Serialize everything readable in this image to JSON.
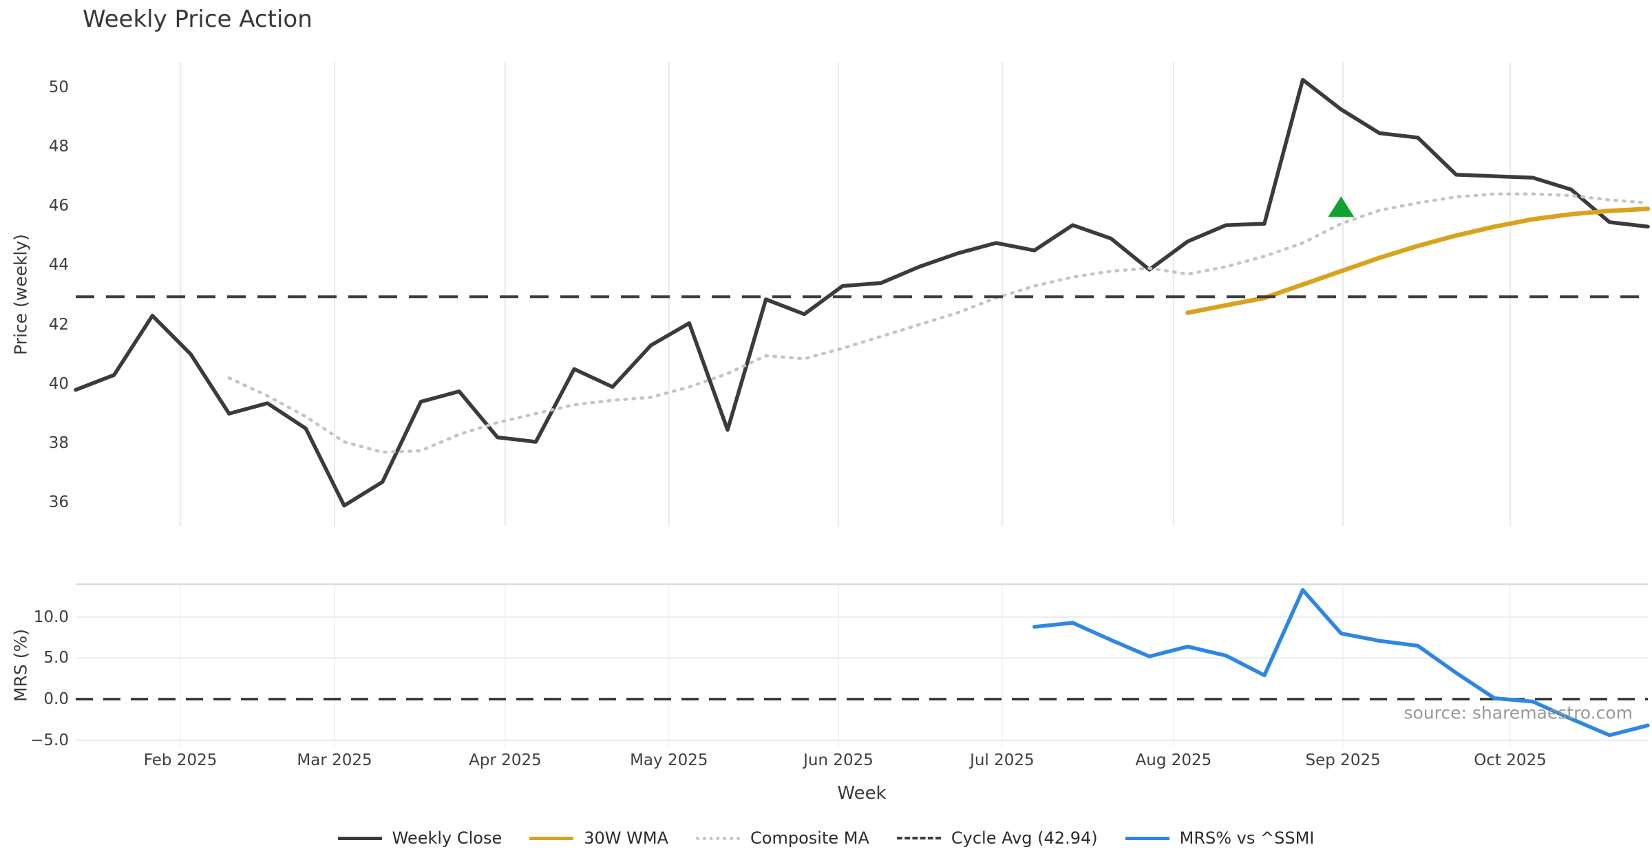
{
  "title": "Weekly Price Action",
  "source_note": "source: sharemaestro.com",
  "axes": {
    "x_label": "Week",
    "month_ticks": [
      {
        "label": "Feb 2025",
        "week": 2.73
      },
      {
        "label": "Mar 2025",
        "week": 6.75
      },
      {
        "label": "Apr 2025",
        "week": 11.2
      },
      {
        "label": "May 2025",
        "week": 15.47
      },
      {
        "label": "Jun 2025",
        "week": 19.89
      },
      {
        "label": "Jul 2025",
        "week": 24.16
      },
      {
        "label": "Aug 2025",
        "week": 28.63
      },
      {
        "label": "Sep 2025",
        "week": 33.05
      },
      {
        "label": "Oct 2025",
        "week": 37.41
      }
    ],
    "price": {
      "label": "Price (weekly)",
      "ticks": [
        36,
        38,
        40,
        42,
        44,
        46,
        48,
        50
      ],
      "ylim": [
        35.2,
        50.85
      ]
    },
    "mrs": {
      "label": "MRS (%)",
      "ticks": [
        {
          "label": "10.0",
          "value": 10
        },
        {
          "label": "5.0",
          "value": 5
        },
        {
          "label": "0.0",
          "value": 0
        },
        {
          "label": "−5.0",
          "value": -5
        }
      ],
      "grid_values": [
        10,
        5,
        -5
      ],
      "ylim": [
        -5.78,
        14.0
      ]
    }
  },
  "colors": {
    "close": "#3b3b3b",
    "wma": "#d7a31d",
    "composite": "#c4c4c4",
    "cycle": "#3d3d3d",
    "mrs": "#2d87e2",
    "marker": "#12a22e",
    "grid": "#e9e9ef",
    "grid_faint": "#f3f3f7",
    "panel_edge": "#d9d9e0"
  },
  "legend": [
    {
      "label": "Weekly Close",
      "style": "solid",
      "color": "#3b3b3b"
    },
    {
      "label": "30W WMA",
      "style": "solid",
      "color": "#d7a31d"
    },
    {
      "label": "Composite MA",
      "style": "dotted",
      "color": "#c4c4c4"
    },
    {
      "label": "Cycle Avg (42.94)",
      "style": "dashed",
      "color": "#3d3d3d"
    },
    {
      "label": "MRS% vs ^SSMI",
      "style": "solid",
      "color": "#2d87e2"
    }
  ],
  "chart_data": [
    {
      "type": "line",
      "panel": "price",
      "title": "Weekly Price Action",
      "xlabel": "Week",
      "ylabel": "Price (weekly)",
      "x_unit": "week_index",
      "x_range": [
        0,
        41
      ],
      "ylim": [
        35.2,
        50.85
      ],
      "grid": "vertical-months-only",
      "series": [
        {
          "name": "Weekly Close",
          "style": "solid",
          "color": "#3b3b3b",
          "values": [
            39.8,
            40.3,
            42.3,
            41.0,
            39.0,
            39.35,
            38.5,
            35.9,
            36.7,
            39.4,
            39.75,
            38.2,
            38.05,
            40.5,
            39.9,
            41.3,
            42.05,
            38.45,
            42.85,
            42.35,
            43.3,
            43.4,
            43.95,
            44.4,
            44.75,
            44.5,
            45.35,
            44.9,
            43.85,
            44.8,
            45.35,
            45.4,
            50.25,
            49.25,
            48.45,
            48.3,
            47.05,
            47.0,
            46.95,
            46.55,
            45.45,
            45.3
          ]
        },
        {
          "name": "30W WMA",
          "style": "solid",
          "color": "#d7a31d",
          "values": [
            null,
            null,
            null,
            null,
            null,
            null,
            null,
            null,
            null,
            null,
            null,
            null,
            null,
            null,
            null,
            null,
            null,
            null,
            null,
            null,
            null,
            null,
            null,
            null,
            null,
            null,
            null,
            null,
            null,
            42.4,
            42.65,
            42.9,
            43.35,
            43.8,
            44.25,
            44.65,
            45.0,
            45.3,
            45.55,
            45.72,
            45.83,
            45.9
          ]
        },
        {
          "name": "Composite MA",
          "style": "dotted",
          "color": "#c4c4c4",
          "values": [
            null,
            null,
            null,
            null,
            40.2,
            39.6,
            38.9,
            38.05,
            37.7,
            37.75,
            38.3,
            38.7,
            39.0,
            39.3,
            39.45,
            39.55,
            39.9,
            40.35,
            40.95,
            40.85,
            41.2,
            41.6,
            42.0,
            42.4,
            42.9,
            43.3,
            43.6,
            43.8,
            43.9,
            43.7,
            43.95,
            44.3,
            44.75,
            45.4,
            45.85,
            46.1,
            46.3,
            46.4,
            46.4,
            46.35,
            46.2,
            46.1
          ]
        },
        {
          "name": "Cycle Avg (42.94)",
          "style": "dashed",
          "color": "#3d3d3d",
          "constant": 42.94
        }
      ],
      "marker": {
        "name": "signal-triangle-up",
        "week": 33,
        "value": 45.95,
        "color": "#12a22e"
      }
    },
    {
      "type": "line",
      "panel": "mrs",
      "ylabel": "MRS (%)",
      "ylim": [
        -5.78,
        14.0
      ],
      "grid": "horizontal",
      "series": [
        {
          "name": "MRS% vs ^SSMI",
          "style": "solid",
          "color": "#2d87e2",
          "values": [
            null,
            null,
            null,
            null,
            null,
            null,
            null,
            null,
            null,
            null,
            null,
            null,
            null,
            null,
            null,
            null,
            null,
            null,
            null,
            null,
            null,
            null,
            null,
            null,
            null,
            8.8,
            9.3,
            7.2,
            5.2,
            6.4,
            5.3,
            2.9,
            13.3,
            8.0,
            7.1,
            6.5,
            3.2,
            0.1,
            -0.3,
            -2.4,
            -4.4,
            -3.2
          ]
        }
      ],
      "zero_line": {
        "value": 0.0,
        "style": "dashed",
        "color": "#2f2f2f"
      }
    }
  ]
}
